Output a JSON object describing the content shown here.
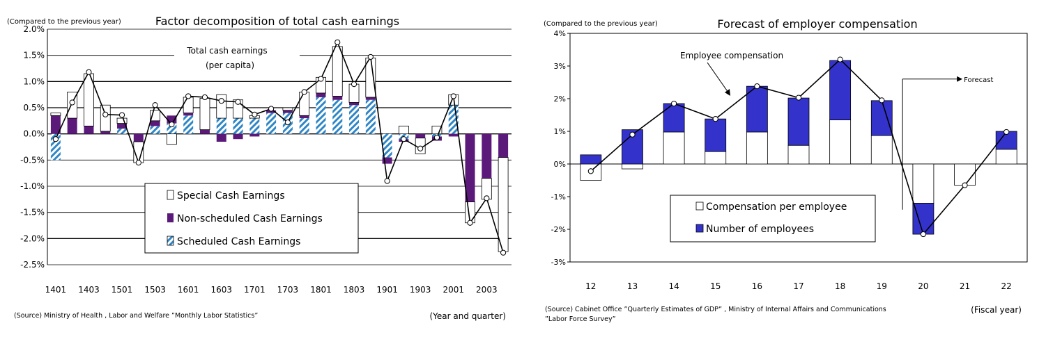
{
  "chart_data": [
    {
      "type": "bar",
      "subtype": "stacked bar with line",
      "title": "Factor decomposition of total cash earnings",
      "unit_label": "(Compared to the previous year)",
      "xlabel": "(Year and quarter)",
      "ylabel": "",
      "ylim": [
        -2.5,
        2.0
      ],
      "yticks": [
        2.0,
        1.5,
        1.0,
        0.5,
        0.0,
        -0.5,
        -1.0,
        -1.5,
        -2.0,
        -2.5
      ],
      "ytick_labels": [
        "2.0%",
        "1.5%",
        "1.0%",
        "0.5%",
        "0.0%",
        "-0.5%",
        "-1.0%",
        "-1.5%",
        "-2.0%",
        "-2.5%"
      ],
      "categories": [
        "1401",
        "1402",
        "1403",
        "1404",
        "1501",
        "1502",
        "1503",
        "1504",
        "1601",
        "1602",
        "1603",
        "1604",
        "1701",
        "1702",
        "1703",
        "1704",
        "1801",
        "1802",
        "1803",
        "1804",
        "1901",
        "1902",
        "1903",
        "1904",
        "2001",
        "2002",
        "2003",
        "2004"
      ],
      "xtick_labels": [
        "1401",
        "1403",
        "1501",
        "1503",
        "1601",
        "1603",
        "1701",
        "1703",
        "1801",
        "1803",
        "1901",
        "1903",
        "2001",
        "2003"
      ],
      "series": [
        {
          "name": "Scheduled Cash Earnings",
          "values": [
            -0.5,
            0.0,
            0.0,
            0.0,
            0.1,
            0.0,
            0.15,
            0.2,
            0.35,
            0.0,
            0.3,
            0.3,
            0.3,
            0.4,
            0.4,
            0.3,
            0.7,
            0.65,
            0.55,
            0.65,
            -0.45,
            -0.1,
            0.0,
            -0.05,
            0.55,
            0.0,
            0.0,
            0.0
          ]
        },
        {
          "name": "Non-scheduled Cash Earnings",
          "values": [
            0.35,
            0.3,
            0.15,
            0.05,
            0.1,
            -0.15,
            0.1,
            0.15,
            0.05,
            0.08,
            -0.15,
            -0.1,
            -0.05,
            0.05,
            0.05,
            0.05,
            0.08,
            0.07,
            0.05,
            0.05,
            -0.12,
            -0.05,
            -0.08,
            -0.08,
            -0.05,
            -1.3,
            -0.85,
            -0.45
          ]
        },
        {
          "name": "Special Cash Earnings",
          "values": [
            0.05,
            0.5,
            1.0,
            0.5,
            0.1,
            -0.4,
            0.2,
            -0.2,
            0.3,
            0.6,
            0.45,
            0.35,
            0.05,
            0.0,
            0.05,
            0.45,
            0.3,
            0.95,
            0.35,
            0.75,
            0.0,
            0.15,
            -0.3,
            0.15,
            0.2,
            -0.4,
            -0.4,
            -1.8
          ]
        }
      ],
      "line_series": {
        "name": "Total cash earnings (per capita)",
        "values": [
          -0.1,
          0.6,
          1.18,
          0.37,
          0.36,
          -0.55,
          0.55,
          0.18,
          0.72,
          0.7,
          0.63,
          0.61,
          0.37,
          0.48,
          0.22,
          0.8,
          1.05,
          1.75,
          0.95,
          1.47,
          -0.9,
          -0.1,
          -0.28,
          -0.07,
          0.72,
          -1.7,
          -1.23,
          -2.27
        ]
      },
      "annotation": [
        "Total cash earnings",
        "(per capita)"
      ],
      "source": "(Source) Ministry of Health , Labor and Welfare ”Monthly Labor Statistics”"
    },
    {
      "type": "bar",
      "subtype": "stacked bar with line",
      "title": "Forecast of employer compensation",
      "unit_label": "(Compared to the previous year)",
      "xlabel": "(Fiscal year)",
      "ylabel": "",
      "ylim": [
        -3,
        4
      ],
      "yticks": [
        4,
        3,
        2,
        1,
        0,
        -1,
        -2,
        -3
      ],
      "ytick_labels": [
        "4%",
        "3%",
        "2%",
        "1%",
        "0%",
        "-1%",
        "-2%",
        "-3%"
      ],
      "categories": [
        "12",
        "13",
        "14",
        "15",
        "16",
        "17",
        "18",
        "19",
        "20",
        "21",
        "22"
      ],
      "series": [
        {
          "name": "Compensation per employee",
          "values": [
            -0.5,
            -0.15,
            0.98,
            0.38,
            0.98,
            0.57,
            1.35,
            0.87,
            -1.2,
            -0.65,
            0.45
          ]
        },
        {
          "name": "Number of employees",
          "values": [
            0.28,
            1.05,
            0.87,
            1.0,
            1.4,
            1.45,
            1.82,
            1.07,
            -0.95,
            0.0,
            0.55
          ]
        }
      ],
      "line_series": {
        "name": "Employee compensation",
        "values": [
          -0.22,
          0.9,
          1.85,
          1.38,
          2.38,
          2.03,
          3.2,
          1.95,
          -2.15,
          -0.65,
          0.98
        ]
      },
      "annotation": [
        "Employee compensation"
      ],
      "forecast_label": "Forecast",
      "source": "(Source) Cabinet Office ”Quarterly Estimates of GDP” , Ministry of Internal Affairs and Communications ”Labor Force Survey”"
    }
  ]
}
